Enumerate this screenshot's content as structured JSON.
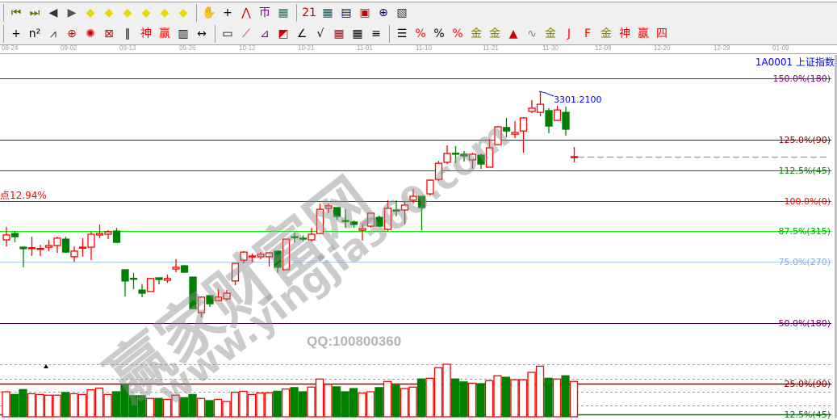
{
  "toolbar_row1": [
    {
      "name": "first-page-icon",
      "glyph": "⏮",
      "color": "#6b6b00"
    },
    {
      "name": "last-page-icon",
      "glyph": "⏭",
      "color": "#6b6b00"
    },
    {
      "name": "step-left-icon",
      "glyph": "◀",
      "color": "#333333"
    },
    {
      "name": "step-right-icon",
      "glyph": "▶",
      "color": "#555555"
    },
    {
      "name": "shift-left-icon",
      "glyph": "◆",
      "color": "#e8d800"
    },
    {
      "name": "shift-right-icon",
      "glyph": "◆",
      "color": "#e8d800"
    },
    {
      "name": "expand-horizontal-icon",
      "glyph": "◆",
      "color": "#e8d800"
    },
    {
      "name": "compress-horizontal-icon",
      "glyph": "◆",
      "color": "#e8d800"
    },
    {
      "name": "expand-all-icon",
      "glyph": "◆",
      "color": "#e8d800"
    },
    {
      "name": "expand-vertical-icon",
      "glyph": "◆",
      "color": "#e8d800"
    },
    {
      "sep": true
    },
    {
      "name": "hand-pan-icon",
      "glyph": "✋",
      "color": "#000000"
    },
    {
      "name": "crosshair-icon",
      "glyph": "+",
      "color": "#000000"
    },
    {
      "name": "line-chart-icon",
      "glyph": "⋀",
      "color": "#cc0000"
    },
    {
      "name": "stock-select-icon",
      "glyph": "帀",
      "color": "#800080"
    },
    {
      "name": "grid-style-icon",
      "glyph": "▦",
      "color": "#008080"
    },
    {
      "sep": true
    },
    {
      "name": "calendar-icon",
      "glyph": "21",
      "color": "#cc0000"
    },
    {
      "name": "calculator-icon",
      "glyph": "▦",
      "color": "#006060"
    },
    {
      "name": "notepad-icon",
      "glyph": "▤",
      "color": "#0000aa"
    },
    {
      "name": "save-icon",
      "glyph": "▣",
      "color": "#cc0000"
    },
    {
      "name": "network-icon",
      "glyph": "⊕",
      "color": "#000080"
    },
    {
      "name": "print-icon",
      "glyph": "▧",
      "color": "#333333"
    }
  ],
  "toolbar_row2": [
    {
      "name": "cross-tool-icon",
      "glyph": "+",
      "color": "#000000"
    },
    {
      "name": "fibonacci-n2-icon",
      "glyph": "n²",
      "color": "#000000"
    },
    {
      "name": "pitchfork-icon",
      "glyph": "⩘",
      "color": "#333333"
    },
    {
      "name": "cycle-circle-icon",
      "glyph": "⊕",
      "color": "#cc0000"
    },
    {
      "name": "spiral-icon",
      "glyph": "✺",
      "color": "#cc0000"
    },
    {
      "name": "gann-box-icon",
      "glyph": "⊠",
      "color": "#cc0000"
    },
    {
      "name": "parallel-lines-icon",
      "glyph": "∥",
      "color": "#000000"
    },
    {
      "name": "god-line-icon",
      "glyph": "神",
      "color": "#ff0000"
    },
    {
      "name": "win-line-icon",
      "glyph": "赢",
      "color": "#ff0000"
    },
    {
      "name": "ruler-icon",
      "glyph": "▥",
      "color": "#000000"
    },
    {
      "name": "measure-width-icon",
      "glyph": "↔",
      "color": "#000000"
    },
    {
      "sep": true
    },
    {
      "name": "rectangle-tool-icon",
      "glyph": "▭",
      "color": "#000000"
    },
    {
      "name": "fan-lines-icon",
      "glyph": "⟋",
      "color": "#ff0000"
    },
    {
      "name": "gann-fan-icon",
      "glyph": "⊿",
      "color": "#800080"
    },
    {
      "name": "gann-square-icon",
      "glyph": "◩",
      "color": "#cc0000"
    },
    {
      "name": "angle-lines-icon",
      "glyph": "∠",
      "color": "#000000"
    },
    {
      "name": "v-line-icon",
      "glyph": "√",
      "color": "#000000"
    },
    {
      "name": "grid-red-icon",
      "glyph": "▦",
      "color": "#cc0000"
    },
    {
      "name": "grid-black-icon",
      "glyph": "▦",
      "color": "#000000"
    },
    {
      "name": "diagonal-lines-icon",
      "glyph": "≡",
      "color": "#000000"
    },
    {
      "sep": true
    },
    {
      "name": "fibonacci-levels-icon",
      "glyph": "☰",
      "color": "#000000"
    },
    {
      "name": "percent-line-icon",
      "glyph": "%",
      "color": "#ff0000"
    },
    {
      "name": "percent-icon",
      "glyph": "%",
      "color": "#000000"
    },
    {
      "name": "percent-levels-icon",
      "glyph": "%",
      "color": "#ff0000"
    },
    {
      "name": "gold-circle-icon",
      "glyph": "金",
      "color": "#808000"
    },
    {
      "name": "gold-levels-icon",
      "glyph": "金",
      "color": "#808000"
    },
    {
      "name": "rocket-icon",
      "glyph": "▲",
      "color": "#cc0000"
    },
    {
      "name": "wave-icon",
      "glyph": "∿",
      "color": "#808080"
    },
    {
      "name": "gold-band-icon",
      "glyph": "金",
      "color": "#808000"
    },
    {
      "name": "j-fan-icon",
      "glyph": "J",
      "color": "#ff0000"
    },
    {
      "name": "f-fan-icon",
      "glyph": "F",
      "color": "#ff0000"
    },
    {
      "name": "gold-fan-icon",
      "glyph": "金",
      "color": "#808000"
    },
    {
      "name": "god-fan-icon",
      "glyph": "神",
      "color": "#ff0000"
    },
    {
      "name": "win-fan-icon",
      "glyph": "赢",
      "color": "#ff0000"
    },
    {
      "name": "four-fan-icon",
      "glyph": "四",
      "color": "#ff0000"
    }
  ],
  "date_axis": [
    "08-24",
    "09-02",
    "09-13",
    "09-26",
    "10-12",
    "10-21",
    "11-01",
    "11-10",
    "11-21",
    "11-30",
    "12-09",
    "12-20",
    "12-29",
    "01-09"
  ],
  "symbol": "1A0001  上证指数",
  "annotation_high": "3301.2100",
  "note_pct": "点12.94%",
  "watermark": {
    "logo": "赢家财富网",
    "site": "www.yingjia360.com"
  },
  "qq": "QQ:100800360",
  "levels": [
    {
      "pct": 150,
      "label": "150.0%(180)",
      "line": "#404040",
      "color": "#800080"
    },
    {
      "pct": 125,
      "label": "125.0%(90)",
      "line": "#a00000",
      "color": "#800000"
    },
    {
      "pct": 112.5,
      "label": "112.5%(45)",
      "line": "#008000",
      "color": "#008000"
    },
    {
      "pct": 100,
      "label": "100.0%(0)",
      "line": "#ff0000",
      "color": "#ff0000"
    },
    {
      "pct": 87.5,
      "label": "87.5%(315)",
      "line": "#00ff00",
      "color": "#00a000"
    },
    {
      "pct": 75,
      "label": "75.0%(270)",
      "line": "#a8c8f0",
      "color": "#80a8e0"
    },
    {
      "pct": 50,
      "label": "50.0%(180)",
      "line": "#400040",
      "color": "#800080"
    }
  ],
  "volume_levels": [
    {
      "pct": 25,
      "label": "25.0%(90)",
      "line": "#a00000",
      "color": "#800000"
    },
    {
      "pct": 12.5,
      "label": "12.5%(45)",
      "line": "#008000",
      "color": "#008000"
    }
  ],
  "colors": {
    "up": "#ff0000",
    "down": "#008000",
    "annotation": "#0000ff"
  },
  "chart_data": {
    "type": "candlestick",
    "y_unit": "percent level",
    "ylim": [
      50,
      150
    ],
    "candles_ohlc": [
      [
        84.0,
        89.3,
        81.3,
        86.0
      ],
      [
        86.6,
        87.6,
        83.0,
        85.3
      ],
      [
        81.0,
        81.4,
        72.8,
        80.4
      ],
      [
        80.6,
        85.3,
        77.4,
        80.8
      ],
      [
        80.3,
        82.0,
        77.4,
        80.5
      ],
      [
        81.0,
        84.0,
        79.4,
        81.7
      ],
      [
        81.7,
        85.3,
        78.7,
        84.7
      ],
      [
        84.3,
        85.3,
        78.7,
        79.0
      ],
      [
        77.1,
        81.4,
        75.1,
        79.4
      ],
      [
        80.8,
        84.7,
        77.1,
        81.0
      ],
      [
        81.0,
        87.3,
        75.7,
        86.3
      ],
      [
        86.0,
        90.3,
        84.7,
        86.6
      ],
      [
        86.3,
        88.0,
        84.3,
        87.3
      ],
      [
        87.6,
        88.9,
        82.7,
        83.0
      ],
      [
        71.8,
        71.8,
        60.9,
        67.2
      ],
      [
        68.3,
        70.5,
        63.9,
        68.1
      ],
      [
        63.5,
        65.9,
        60.6,
        62.2
      ],
      [
        62.9,
        68.5,
        62.9,
        68.2
      ],
      [
        68.5,
        68.5,
        65.8,
        67.8
      ],
      [
        67.5,
        69.8,
        66.5,
        68.2
      ],
      [
        72.1,
        76.1,
        70.8,
        72.8
      ],
      [
        73.4,
        73.8,
        70.5,
        70.8
      ],
      [
        68.8,
        68.8,
        55.9,
        55.9
      ],
      [
        54.3,
        60.9,
        52.3,
        60.6
      ],
      [
        61.2,
        61.2,
        56.6,
        57.9
      ],
      [
        59.2,
        63.9,
        58.9,
        60.6
      ],
      [
        59.9,
        63.5,
        59.2,
        62.2
      ],
      [
        67.2,
        74.4,
        65.5,
        74.4
      ],
      [
        75.7,
        79.4,
        74.4,
        79.0
      ],
      [
        77.1,
        78.4,
        74.8,
        77.4
      ],
      [
        77.1,
        79.0,
        76.1,
        78.1
      ],
      [
        77.1,
        79.0,
        73.1,
        78.7
      ],
      [
        79.4,
        79.7,
        70.5,
        72.8
      ],
      [
        71.8,
        84.3,
        71.8,
        84.3
      ],
      [
        85.3,
        87.0,
        83.0,
        85.1
      ],
      [
        84.7,
        85.8,
        83.5,
        84.5
      ],
      [
        84.0,
        88.9,
        83.3,
        86.3
      ],
      [
        86.6,
        98.8,
        86.3,
        96.5
      ],
      [
        96.9,
        98.8,
        94.9,
        97.9
      ],
      [
        97.2,
        97.2,
        92.2,
        93.6
      ],
      [
        91.9,
        96.5,
        88.9,
        91.7
      ],
      [
        91.3,
        91.9,
        88.9,
        90.3
      ],
      [
        87.9,
        90.3,
        83.7,
        88.6
      ],
      [
        89.6,
        94.9,
        88.9,
        94.9
      ],
      [
        93.2,
        93.9,
        89.3,
        89.6
      ],
      [
        88.3,
        100.2,
        87.6,
        96.9
      ],
      [
        96.2,
        100.2,
        93.6,
        96.0
      ],
      [
        96.2,
        99.5,
        90.3,
        98.2
      ],
      [
        100.2,
        104.8,
        98.8,
        101.8
      ],
      [
        101.8,
        101.8,
        87.9,
        97.2
      ],
      [
        102.8,
        108.7,
        102.1,
        108.4
      ],
      [
        108.7,
        116.3,
        108.1,
        115.3
      ],
      [
        115.7,
        122.6,
        115.0,
        119.3
      ],
      [
        119.4,
        122.3,
        115.3,
        119.2
      ],
      [
        119.0,
        120.3,
        116.0,
        118.3
      ],
      [
        116.7,
        119.6,
        113.0,
        119.0
      ],
      [
        118.6,
        119.3,
        113.0,
        115.0
      ],
      [
        113.7,
        125.2,
        113.7,
        121.6
      ],
      [
        122.9,
        130.5,
        122.6,
        130.2
      ],
      [
        129.9,
        133.8,
        125.9,
        128.5
      ],
      [
        127.2,
        132.5,
        125.6,
        127.9
      ],
      [
        128.5,
        134.2,
        119.6,
        133.8
      ],
      [
        136.5,
        141.1,
        135.8,
        137.8
      ],
      [
        136.1,
        144.7,
        134.5,
        139.4
      ],
      [
        136.8,
        137.8,
        127.6,
        130.5
      ],
      [
        132.8,
        138.8,
        132.5,
        137.1
      ],
      [
        136.1,
        138.4,
        126.6,
        129.2
      ],
      [
        117.9,
        121.9,
        115.7,
        118.0
      ]
    ],
    "volume_pct": [
      21.7,
      20.6,
      22.6,
      20.9,
      20.6,
      20.3,
      20.3,
      21.4,
      20.9,
      20.6,
      22.5,
      23.2,
      20.6,
      21.7,
      24.7,
      20.1,
      20.1,
      19.0,
      19.0,
      18.6,
      20.3,
      19.3,
      20.6,
      19.0,
      18.1,
      18.6,
      17.7,
      21.5,
      21.9,
      20.6,
      21.2,
      21.3,
      21.9,
      22.8,
      23.4,
      21.7,
      23.6,
      26.9,
      24.7,
      23.7,
      21.7,
      23.0,
      21.1,
      21.7,
      23.4,
      25.9,
      24.3,
      23.0,
      23.6,
      26.9,
      27.2,
      31.5,
      32.9,
      26.9,
      25.7,
      25.2,
      25.0,
      26.2,
      28.2,
      27.6,
      26.6,
      26.6,
      29.6,
      32.1,
      27.2,
      26.9,
      28.2,
      25.9
    ],
    "last_price_dashed": true
  }
}
